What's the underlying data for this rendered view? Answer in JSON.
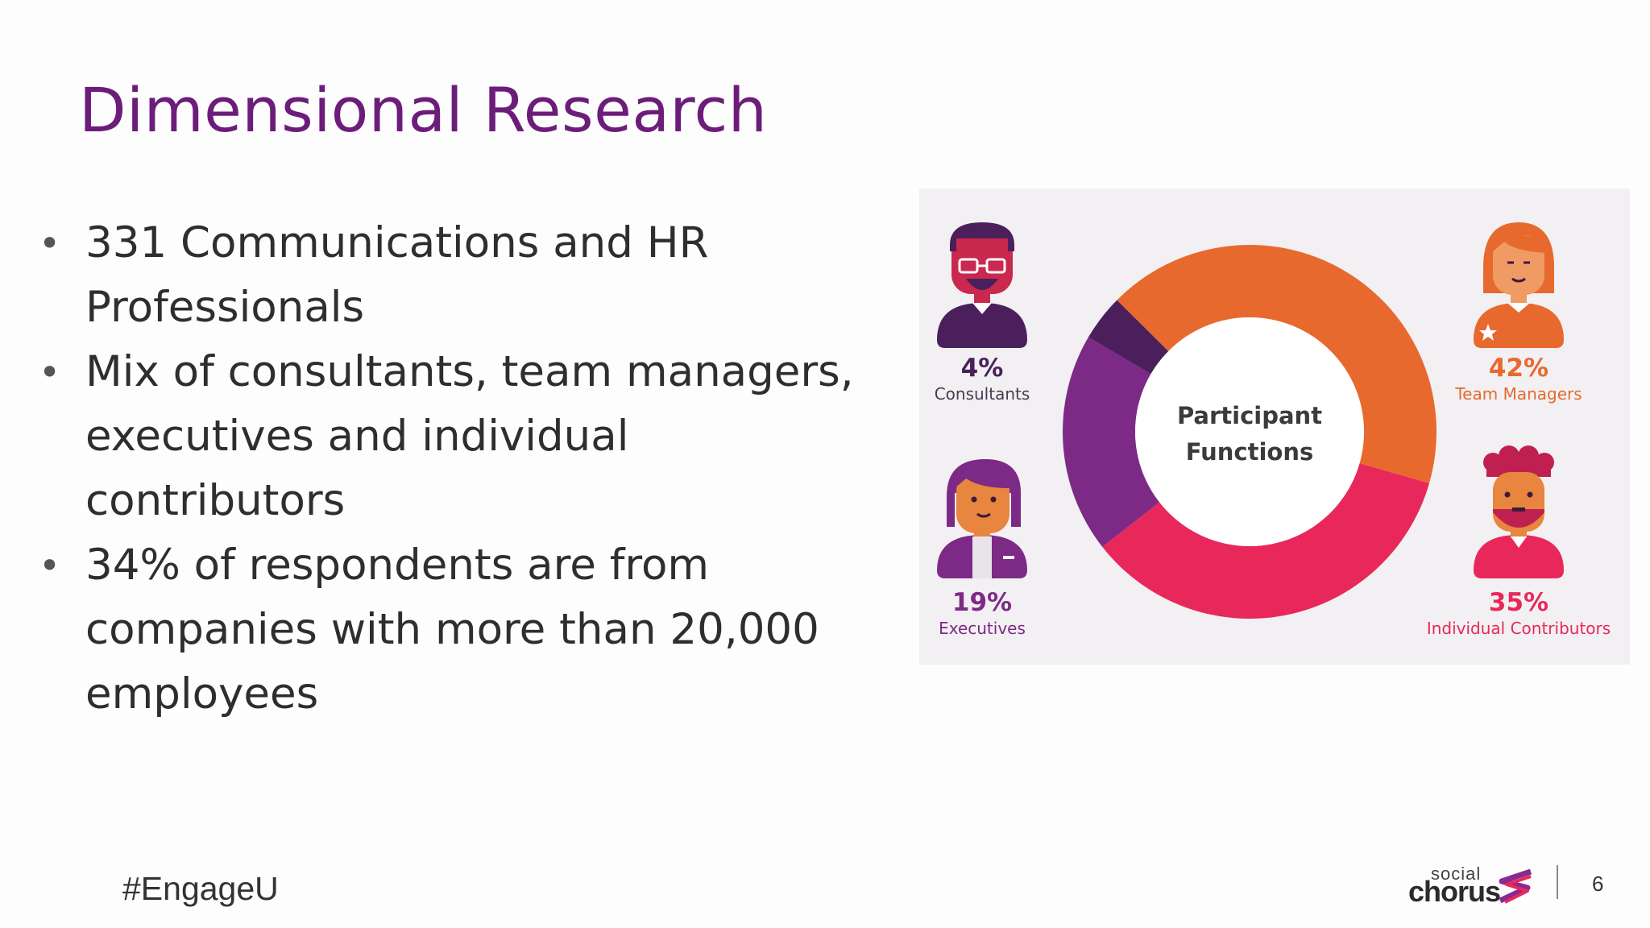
{
  "slide": {
    "title": "Dimensional Research",
    "bullets": [
      {
        "lines": [
          "331 Communications and HR",
          "Professionals"
        ]
      },
      {
        "lines": [
          "Mix of consultants, team managers,",
          "executives and individual contributors"
        ]
      },
      {
        "lines": [
          "34% of respondents are from",
          "companies with more than 20,000",
          "employees"
        ]
      }
    ],
    "bullet_marker": "•"
  },
  "chart_data": {
    "type": "pie",
    "title": "Participant Functions",
    "title_lines": [
      "Participant",
      "Functions"
    ],
    "slices": [
      {
        "label": "Team Managers",
        "value": 42,
        "value_label": "42%",
        "color": "#e8692e"
      },
      {
        "label": "Individual Contributors",
        "value": 35,
        "value_label": "35%",
        "color": "#e8285a"
      },
      {
        "label": "Executives",
        "value": 19,
        "value_label": "19%",
        "color": "#7d2a86"
      },
      {
        "label": "Consultants",
        "value": 4,
        "value_label": "4%",
        "color": "#4a1f5c"
      }
    ]
  },
  "footer": {
    "hashtag": "#EngageU",
    "logo_top": "social",
    "logo_bottom": "chorus",
    "page_number": "6"
  }
}
